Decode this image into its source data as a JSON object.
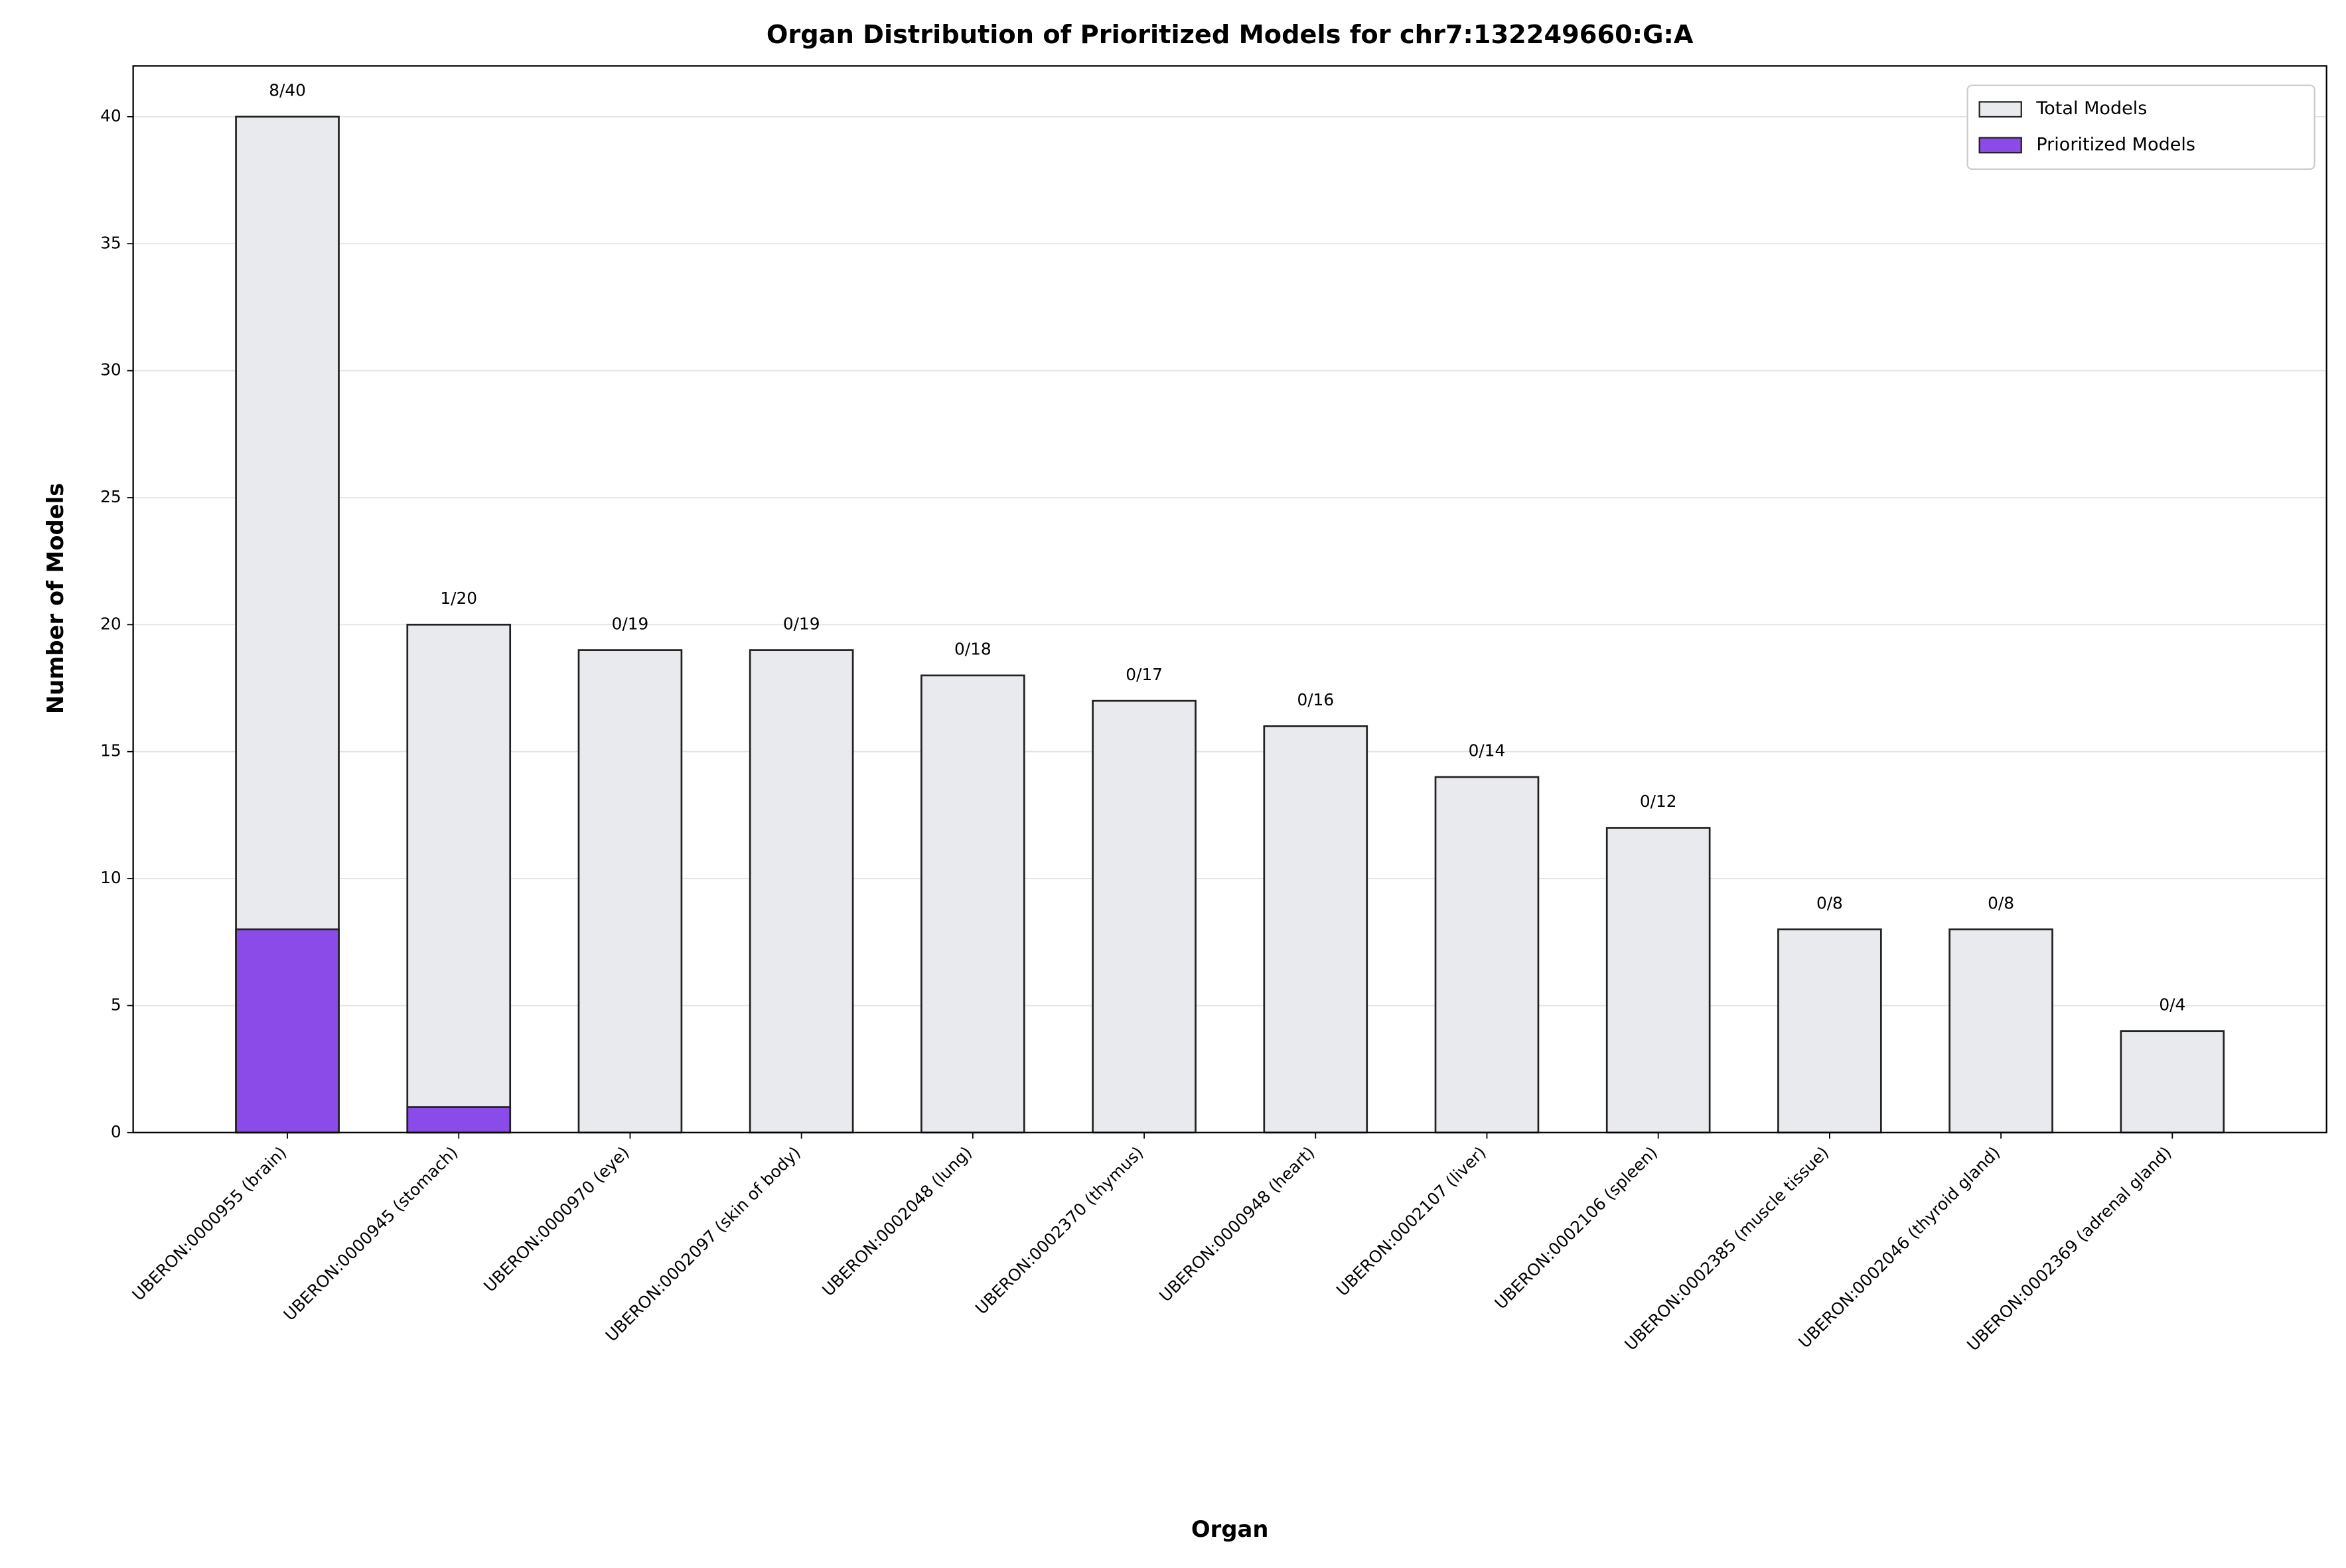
{
  "chart_data": {
    "type": "bar",
    "title": "Organ Distribution of Prioritized Models for chr7:132249660:G:A",
    "x_label": "Organ",
    "y_label": "Number of Models",
    "categories": [
      "UBERON:0000955 (brain)",
      "UBERON:0000945 (stomach)",
      "UBERON:0000970 (eye)",
      "UBERON:0002097 (skin of body)",
      "UBERON:0002048 (lung)",
      "UBERON:0002370 (thymus)",
      "UBERON:0000948 (heart)",
      "UBERON:0002107 (liver)",
      "UBERON:0002106 (spleen)",
      "UBERON:0002385 (muscle tissue)",
      "UBERON:0002046 (thyroid gland)",
      "UBERON:0002369 (adrenal gland)"
    ],
    "series": [
      {
        "name": "Total Models",
        "color": "#e9eaed",
        "values": [
          40,
          20,
          19,
          19,
          18,
          17,
          16,
          14,
          12,
          8,
          8,
          4
        ]
      },
      {
        "name": "Prioritized Models",
        "color": "#8a4be8",
        "values": [
          8,
          1,
          0,
          0,
          0,
          0,
          0,
          0,
          0,
          0,
          0,
          0
        ]
      }
    ],
    "annotations": [
      "8/40",
      "1/20",
      "0/19",
      "0/19",
      "0/18",
      "0/17",
      "0/16",
      "0/14",
      "0/12",
      "0/8",
      "0/8",
      "0/4"
    ],
    "ylim": [
      0,
      42
    ],
    "yticks": [
      0,
      5,
      10,
      15,
      20,
      25,
      30,
      35,
      40
    ],
    "grid": true,
    "legend": "upper right"
  }
}
